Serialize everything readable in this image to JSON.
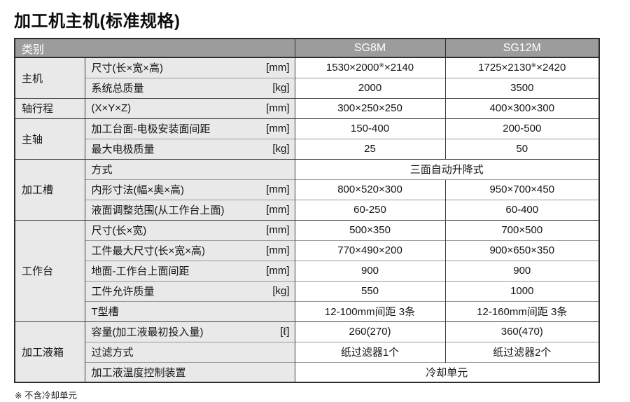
{
  "title": "加工机主机(标准规格)",
  "footnote": "※ 不含冷却单元",
  "colors": {
    "header_bg": "#9c9c9c",
    "header_text": "#ffffff",
    "label_bg": "#e9e9e9",
    "border_dark": "#3e3e3e",
    "border_light": "#9a9a9a"
  },
  "header": {
    "category": "类别",
    "model1": "SG8M",
    "model2": "SG12M"
  },
  "groups": {
    "g1": "主机",
    "g2": "轴行程",
    "g3": "主轴",
    "g4": "加工槽",
    "g5": "工作台",
    "g6": "加工液箱"
  },
  "rows": {
    "r1": {
      "param": "尺寸(长×宽×高)",
      "unit": "[mm]",
      "v1_pre": "1530×2000",
      "v1_sup": "※",
      "v1_post": "×2140",
      "v2_pre": "1725×2130",
      "v2_sup": "※",
      "v2_post": "×2420"
    },
    "r2": {
      "param": "系统总质量",
      "unit": "[kg]",
      "v1": "2000",
      "v2": "3500"
    },
    "r3": {
      "param": "(X×Y×Z)",
      "unit": "[mm]",
      "v1": "300×250×250",
      "v2": "400×300×300"
    },
    "r4": {
      "param": "加工台面-电极安装面间距",
      "unit": "[mm]",
      "v1": "150-400",
      "v2": "200-500"
    },
    "r5": {
      "param": "最大电极质量",
      "unit": "[kg]",
      "v1": "25",
      "v2": "50"
    },
    "r6": {
      "param": "方式",
      "v_span": "三面自动升降式"
    },
    "r7": {
      "param": "内形寸法(幅×奥×高)",
      "unit": "[mm]",
      "v1": "800×520×300",
      "v2": "950×700×450"
    },
    "r8": {
      "param": "液面调整范围(从工作台上面)",
      "unit": "[mm]",
      "v1": "60-250",
      "v2": "60-400"
    },
    "r9": {
      "param": "尺寸(长×宽)",
      "unit": "[mm]",
      "v1": "500×350",
      "v2": "700×500"
    },
    "r10": {
      "param": "工件最大尺寸(长×宽×高)",
      "unit": "[mm]",
      "v1": "770×490×200",
      "v2": "900×650×350"
    },
    "r11": {
      "param": "地面-工作台上面间距",
      "unit": "[mm]",
      "v1": "900",
      "v2": "900"
    },
    "r12": {
      "param": "工件允许质量",
      "unit": "[kg]",
      "v1": "550",
      "v2": "1000"
    },
    "r13": {
      "param": "T型槽",
      "v1": "12-100mm间距 3条",
      "v2": "12-160mm间距 3条"
    },
    "r14": {
      "param": "容量(加工液最初投入量)",
      "unit": "[ℓ]",
      "v1": "260(270)",
      "v2": "360(470)"
    },
    "r15": {
      "param": "过滤方式",
      "v1": "纸过滤器1个",
      "v2": "纸过滤器2个"
    },
    "r16": {
      "param": "加工液温度控制装置",
      "v_span": "冷却单元"
    }
  }
}
